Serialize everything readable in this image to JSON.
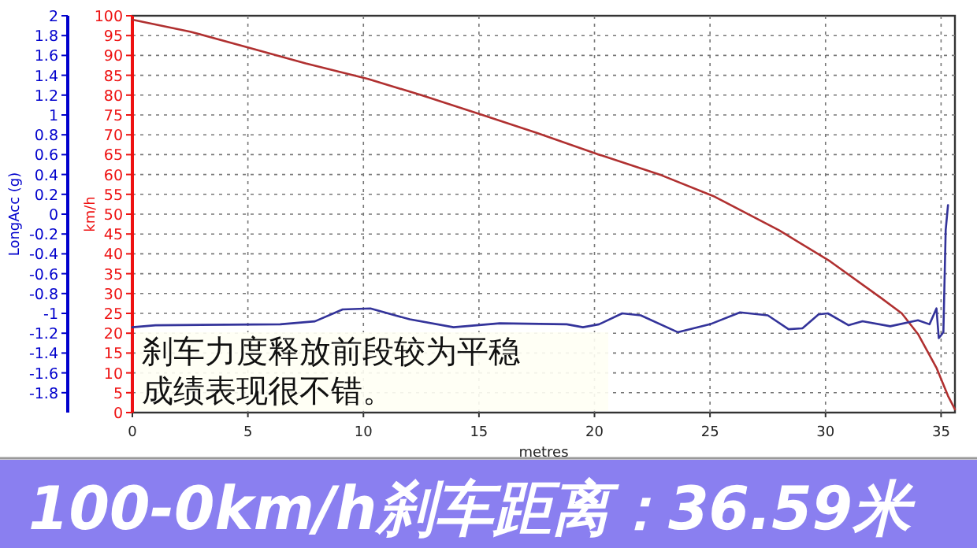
{
  "chart_data": {
    "type": "line",
    "title": "100-0km/h刹车距离：36.59米",
    "xlabel": "metres",
    "ylabel": "LongAcc (g)",
    "y2label": "km/h",
    "annotations": [
      "刹车力度释放前段较为平稳",
      "成绩表现很不错。"
    ],
    "xlim": [
      0,
      35.6
    ],
    "xticks": [
      0,
      5,
      10,
      15,
      20,
      25,
      30,
      35
    ],
    "ylim": [
      -2,
      2
    ],
    "yticks": [
      2,
      1.8,
      1.6,
      1.4,
      1.2,
      1,
      0.8,
      0.6,
      0.4,
      0.2,
      0,
      -0.2,
      -0.4,
      -0.6,
      -0.8,
      -1,
      -1.2,
      -1.4,
      -1.6,
      -1.8
    ],
    "y2lim": [
      0,
      100
    ],
    "y2ticks": [
      0,
      5,
      10,
      15,
      20,
      25,
      30,
      35,
      40,
      45,
      50,
      55,
      60,
      65,
      70,
      75,
      80,
      85,
      90,
      95,
      100
    ],
    "grid": true,
    "marker": "none",
    "line_style": "solid",
    "series": [
      {
        "color": "#b03030",
        "axis": "y2",
        "x": [
          0,
          2.5,
          5,
          7.5,
          10.2,
          12.5,
          15.2,
          17.5,
          20.2,
          22.9,
          25.2,
          28,
          30.2,
          32.4,
          33.3,
          34,
          34.8,
          35.3,
          35.6
        ],
        "values": [
          99,
          96,
          92,
          88,
          84.1,
          80,
          74.9,
          70.5,
          65,
          59.8,
          54.4,
          45.9,
          38.1,
          28.9,
          25,
          19.8,
          11.3,
          4.2,
          0.8
        ]
      },
      {
        "color": "#33339a",
        "axis": "y",
        "x": [
          0,
          1,
          6.4,
          7.9,
          9.1,
          10.3,
          12,
          13.9,
          15.9,
          18.8,
          19.5,
          20.2,
          21.2,
          22,
          23.6,
          25,
          26.3,
          27.5,
          28.4,
          29,
          29.7,
          30.1,
          31,
          31.6,
          32.8,
          34,
          34.5,
          34.8,
          34.9,
          35.1,
          35.2,
          35.3
        ],
        "values": [
          -1.14,
          -1.12,
          -1.11,
          -1.08,
          -0.96,
          -0.95,
          -1.06,
          -1.14,
          -1.1,
          -1.11,
          -1.14,
          -1.11,
          -1,
          -1.02,
          -1.19,
          -1.11,
          -0.99,
          -1.02,
          -1.16,
          -1.15,
          -1.01,
          -1,
          -1.12,
          -1.08,
          -1.13,
          -1.07,
          -1.11,
          -0.95,
          -1.25,
          -1.19,
          -0.16,
          0.09
        ]
      }
    ]
  }
}
